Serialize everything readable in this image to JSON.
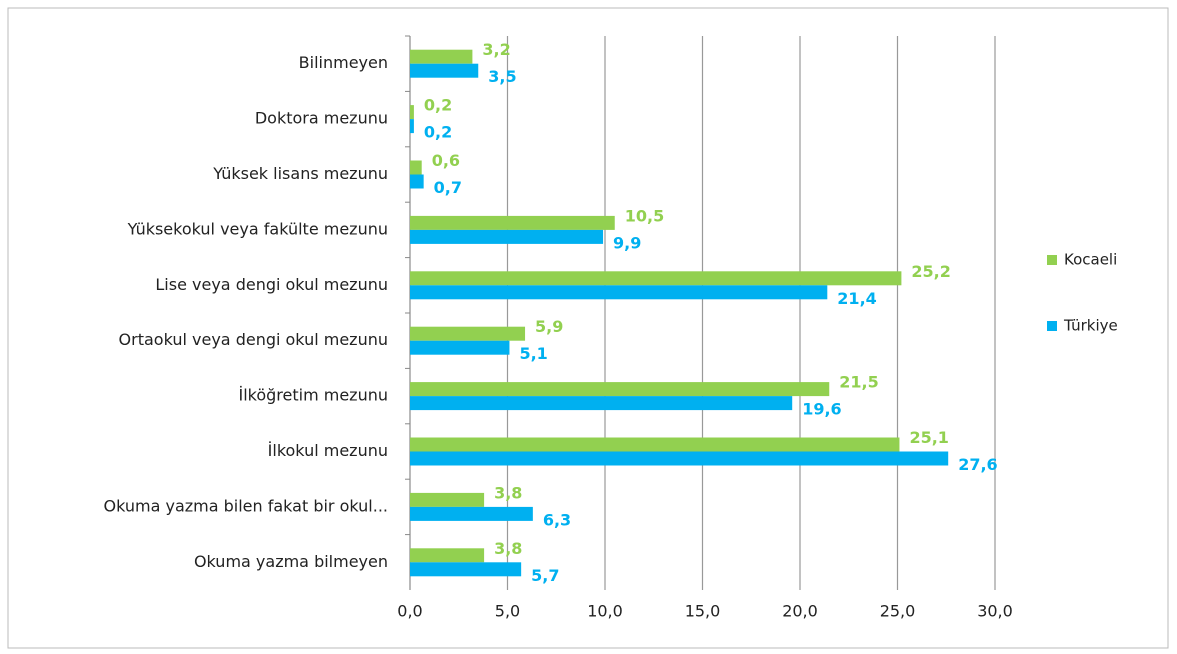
{
  "chart_data": {
    "type": "hbar",
    "categories": [
      "Bilinmeyen",
      "Doktora mezunu",
      "Yüksek lisans mezunu",
      "Yüksekokul veya fakülte mezunu",
      "Lise veya dengi okul mezunu",
      "Ortaokul veya dengi okul mezunu",
      "İlköğretim mezunu",
      "İlkokul mezunu",
      "Okuma yazma bilen fakat bir okul...",
      "Okuma yazma bilmeyen"
    ],
    "series": [
      {
        "name": "Kocaeli",
        "color": "#92d050",
        "values": [
          3.2,
          0.2,
          0.6,
          10.5,
          25.2,
          5.9,
          21.5,
          25.1,
          3.8,
          3.8
        ],
        "value_labels": [
          "3,2",
          "0,2",
          "0,6",
          "10,5",
          "25,2",
          "5,9",
          "21,5",
          "25,1",
          "3,8",
          "3,8"
        ]
      },
      {
        "name": "Türkiye",
        "color": "#00b0f0",
        "values": [
          3.5,
          0.2,
          0.7,
          9.9,
          21.4,
          5.1,
          19.6,
          27.6,
          6.3,
          5.7
        ],
        "value_labels": [
          "3,5",
          "0,2",
          "0,7",
          "9,9",
          "21,4",
          "5,1",
          "19,6",
          "27,6",
          "6,3",
          "5,7"
        ]
      }
    ],
    "xlim": [
      0,
      30
    ],
    "xticks": [
      {
        "value": 0,
        "label": "0,0"
      },
      {
        "value": 5,
        "label": "5,0"
      },
      {
        "value": 10,
        "label": "10,0"
      },
      {
        "value": 15,
        "label": "15,0"
      },
      {
        "value": 20,
        "label": "20,0"
      },
      {
        "value": 25,
        "label": "25,0"
      },
      {
        "value": 30,
        "label": "30,0"
      }
    ],
    "grid": true,
    "legend": "right"
  }
}
